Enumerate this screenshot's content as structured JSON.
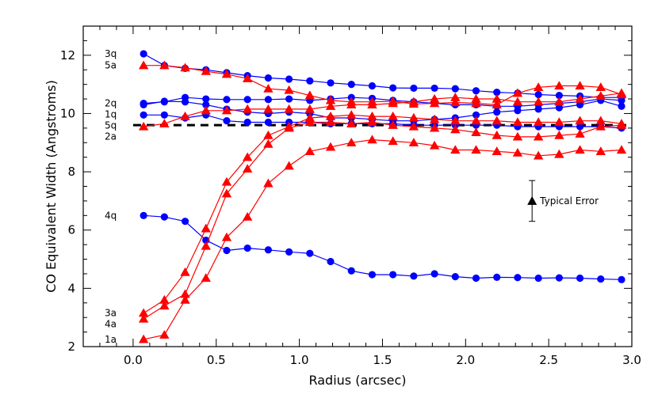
{
  "chart_data": {
    "type": "line",
    "xlabel": "Radius (arcsec)",
    "ylabel": "CO Equivalent Width (Angstroms)",
    "xlim": [
      -0.3,
      3.0
    ],
    "ylim": [
      2.0,
      13.0
    ],
    "xticks": [
      0.0,
      0.5,
      1.0,
      1.5,
      2.0,
      2.5,
      3.0
    ],
    "xtick_labels": [
      "0.0",
      "0.5",
      "1.0",
      "1.5",
      "2.0",
      "2.5",
      "3.0"
    ],
    "yticks": [
      2,
      4,
      6,
      8,
      10,
      12
    ],
    "ytick_labels": [
      "2",
      "4",
      "6",
      "8",
      "10",
      "12"
    ],
    "x": [
      0.063,
      0.188,
      0.313,
      0.438,
      0.563,
      0.688,
      0.813,
      0.938,
      1.063,
      1.188,
      1.313,
      1.438,
      1.563,
      1.688,
      1.813,
      1.938,
      2.063,
      2.188,
      2.313,
      2.438,
      2.563,
      2.688,
      2.813,
      2.938
    ],
    "reference_line": {
      "y": 9.6,
      "style": "dashed"
    },
    "annotation": {
      "label": "Typical Error",
      "x": 2.4,
      "y": 7.0,
      "y_low": 6.3,
      "y_high": 7.7
    },
    "colors": {
      "q_series": "#0000ff",
      "a_series": "#ff0000",
      "reference": "#000000"
    },
    "series": [
      {
        "name": "3q",
        "marker": "circle",
        "color": "#0000ff",
        "values": [
          12.05,
          11.65,
          11.55,
          11.5,
          11.4,
          11.3,
          11.22,
          11.18,
          11.12,
          11.05,
          11.0,
          10.95,
          10.88,
          10.87,
          10.87,
          10.85,
          10.78,
          10.73,
          10.7,
          10.65,
          10.62,
          10.6,
          10.55,
          10.55
        ]
      },
      {
        "name": "5a",
        "marker": "triangle",
        "color": "#ff0000",
        "values": [
          11.65,
          11.65,
          11.57,
          11.45,
          11.35,
          11.2,
          10.85,
          10.8,
          10.62,
          10.45,
          10.4,
          10.4,
          10.42,
          10.33,
          10.35,
          10.38,
          10.35,
          10.3,
          10.7,
          10.9,
          10.95,
          10.95,
          10.9,
          10.65
        ]
      },
      {
        "name": "2q",
        "marker": "circle",
        "color": "#0000ff",
        "values": [
          10.35,
          10.4,
          10.55,
          10.5,
          10.48,
          10.48,
          10.48,
          10.5,
          10.45,
          10.5,
          10.55,
          10.52,
          10.45,
          10.4,
          10.35,
          10.3,
          10.3,
          10.25,
          10.25,
          10.3,
          10.35,
          10.4,
          10.5,
          10.45
        ]
      },
      {
        "name": "1q",
        "marker": "circle",
        "color": "#0000ff",
        "values": [
          10.3,
          10.42,
          10.4,
          10.3,
          10.15,
          10.05,
          10.0,
          10.05,
          10.0,
          9.85,
          9.85,
          9.8,
          9.75,
          9.75,
          9.8,
          9.85,
          9.95,
          10.05,
          10.1,
          10.15,
          10.2,
          10.3,
          10.45,
          10.25
        ]
      },
      {
        "name": "5q",
        "marker": "circle",
        "color": "#0000ff",
        "values": [
          9.95,
          9.95,
          9.85,
          9.95,
          9.75,
          9.7,
          9.7,
          9.7,
          9.7,
          9.65,
          9.65,
          9.65,
          9.65,
          9.6,
          9.6,
          9.6,
          9.6,
          9.6,
          9.55,
          9.55,
          9.55,
          9.55,
          9.55,
          9.5
        ]
      },
      {
        "name": "2a",
        "marker": "triangle",
        "color": "#ff0000",
        "values": [
          9.55,
          9.65,
          9.9,
          10.1,
          10.1,
          10.15,
          10.15,
          10.15,
          10.15,
          10.25,
          10.3,
          10.3,
          10.35,
          10.4,
          10.5,
          10.55,
          10.5,
          10.5,
          10.4,
          10.4,
          10.4,
          10.5,
          10.6,
          10.7
        ]
      },
      {
        "name": "4q",
        "marker": "circle",
        "color": "#0000ff",
        "values": [
          6.5,
          6.45,
          6.3,
          5.65,
          5.3,
          5.38,
          5.32,
          5.25,
          5.2,
          4.92,
          4.6,
          4.47,
          4.47,
          4.42,
          4.5,
          4.4,
          4.35,
          4.38,
          4.37,
          4.35,
          4.36,
          4.35,
          4.32,
          4.3
        ]
      },
      {
        "name": "3a",
        "marker": "triangle",
        "color": "#ff0000",
        "values": [
          3.15,
          3.6,
          4.55,
          6.05,
          7.65,
          8.5,
          9.25,
          9.55,
          9.85,
          9.9,
          9.95,
          9.9,
          9.9,
          9.85,
          9.8,
          9.75,
          9.75,
          9.75,
          9.7,
          9.7,
          9.7,
          9.75,
          9.75,
          9.65
        ]
      },
      {
        "name": "4a",
        "marker": "triangle",
        "color": "#ff0000",
        "values": [
          2.95,
          3.4,
          3.8,
          5.45,
          7.25,
          8.1,
          8.95,
          9.5,
          9.7,
          9.7,
          9.65,
          9.7,
          9.6,
          9.55,
          9.5,
          9.45,
          9.35,
          9.25,
          9.2,
          9.2,
          9.25,
          9.3,
          9.55,
          9.6
        ]
      },
      {
        "name": "1a",
        "marker": "triangle",
        "color": "#ff0000",
        "values": [
          2.25,
          2.4,
          3.6,
          4.35,
          5.75,
          6.45,
          7.6,
          8.2,
          8.7,
          8.85,
          9.0,
          9.1,
          9.05,
          9.0,
          8.9,
          8.75,
          8.75,
          8.7,
          8.65,
          8.55,
          8.6,
          8.75,
          8.7,
          8.75
        ]
      }
    ],
    "series_tag_order": [
      "3q",
      "5a",
      "2q",
      "1q",
      "5q",
      "2a",
      "4q",
      "3a",
      "4a",
      "1a"
    ]
  }
}
